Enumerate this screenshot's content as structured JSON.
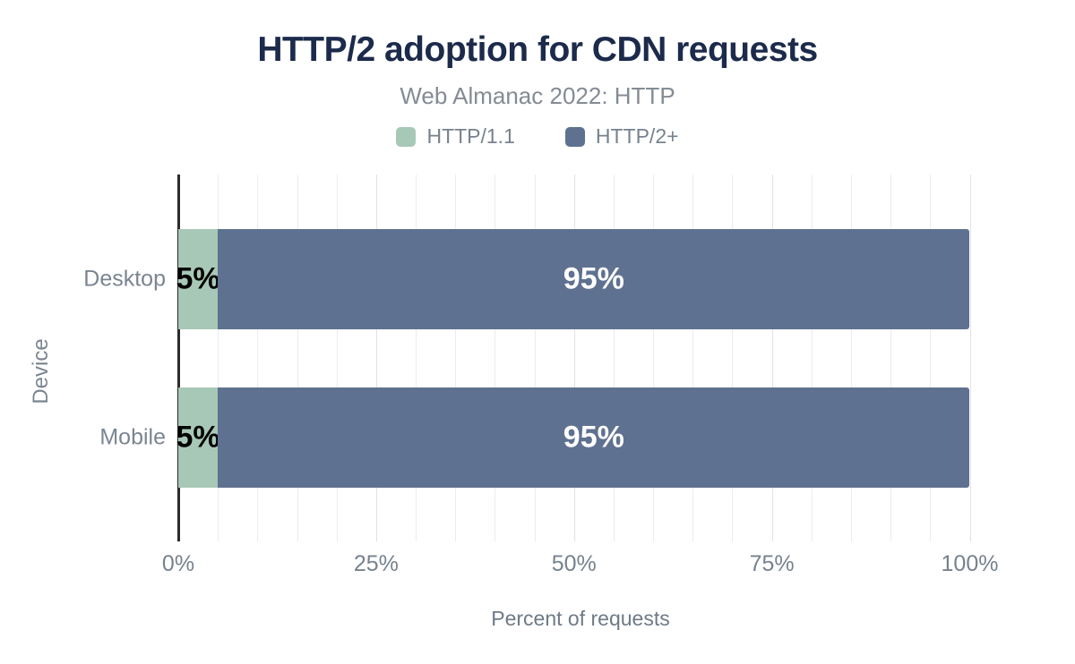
{
  "chart_data": {
    "type": "bar",
    "orientation": "horizontal",
    "stacked": true,
    "title": "HTTP/2 adoption for CDN requests",
    "subtitle": "Web Almanac 2022: HTTP",
    "xlabel": "Percent of requests",
    "ylabel": "Device",
    "categories": [
      "Desktop",
      "Mobile"
    ],
    "series": [
      {
        "name": "HTTP/1.1",
        "color": "#a8c8b7",
        "label_color": "#000000",
        "values": [
          5,
          5
        ],
        "labels": [
          "5%",
          "5%"
        ]
      },
      {
        "name": "HTTP/2+",
        "color": "#5f7190",
        "label_color": "#ffffff",
        "values": [
          95,
          95
        ],
        "labels": [
          "95%",
          "95%"
        ]
      }
    ],
    "x_ticks": [
      {
        "value": 0,
        "label": "0%"
      },
      {
        "value": 25,
        "label": "25%"
      },
      {
        "value": 50,
        "label": "50%"
      },
      {
        "value": 75,
        "label": "75%"
      },
      {
        "value": 100,
        "label": "100%"
      }
    ],
    "xlim": [
      0,
      105
    ],
    "grid": {
      "step": 5,
      "major_step": 25,
      "on": true
    },
    "legend_position": "top"
  },
  "colors": {
    "background": "#ffffff",
    "title": "#1c2a4b",
    "subtitle": "#848b93",
    "text_gray": "#7b8591",
    "axis": "#2b2b2b",
    "gridline": "#ececec"
  }
}
